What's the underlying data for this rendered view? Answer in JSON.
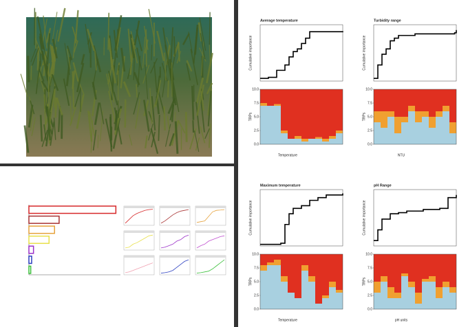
{
  "left_chart": {
    "values": [
      0.95,
      0.33,
      0.28,
      0.22,
      0.05,
      0.03,
      0.02
    ],
    "colors": [
      "#d62728",
      "#a83232",
      "#e6a23c",
      "#e8e04a",
      "#9b30c8",
      "#2b3fc0",
      "#3cc03c"
    ],
    "xlim": [
      0,
      1
    ]
  },
  "mini_plots": {
    "x": [
      0,
      1,
      2,
      3,
      4,
      5,
      6,
      7
    ],
    "ylim": [
      0,
      1
    ],
    "plots": [
      {
        "color": "#d62728",
        "y": [
          0.05,
          0.3,
          0.55,
          0.7,
          0.8,
          0.9,
          0.95,
          0.97
        ]
      },
      {
        "color": "#a83232",
        "y": [
          0.05,
          0.2,
          0.4,
          0.6,
          0.75,
          0.85,
          0.9,
          0.95
        ]
      },
      {
        "color": "#e6a23c",
        "y": [
          0.1,
          0.15,
          0.2,
          0.5,
          0.8,
          0.9,
          0.92,
          0.95
        ]
      },
      {
        "color": "#e8e04a",
        "y": [
          0.05,
          0.1,
          0.3,
          0.4,
          0.55,
          0.7,
          0.85,
          0.9
        ]
      },
      {
        "color": "#9b30c8",
        "y": [
          0.05,
          0.1,
          0.2,
          0.3,
          0.5,
          0.6,
          0.8,
          0.9
        ]
      },
      {
        "color": "#c050d0",
        "y": [
          0.05,
          0.2,
          0.3,
          0.5,
          0.6,
          0.7,
          0.8,
          0.85
        ]
      },
      {
        "color": "#f0a0b0",
        "y": [
          0.05,
          0.1,
          0.2,
          0.3,
          0.4,
          0.5,
          0.6,
          0.7
        ]
      },
      {
        "color": "#2b3fc0",
        "y": [
          0.02,
          0.05,
          0.1,
          0.2,
          0.4,
          0.6,
          0.8,
          0.9
        ]
      },
      {
        "color": "#3cc03c",
        "y": [
          0.02,
          0.05,
          0.1,
          0.15,
          0.3,
          0.5,
          0.7,
          0.9
        ]
      }
    ]
  },
  "bar_yticks": [
    {
      "value": 0,
      "label": "0.0"
    },
    {
      "value": 2.5,
      "label": "2.5"
    },
    {
      "value": 5,
      "label": "5.0"
    },
    {
      "value": 7.5,
      "label": "7.5"
    },
    {
      "value": 10,
      "label": "10.0"
    }
  ],
  "bar_ylim": [
    0,
    10
  ],
  "stack_colors": [
    "#a8d0e0",
    "#f0a030",
    "#e03020"
  ],
  "step_xlim": [
    0,
    10
  ],
  "step_ylim": [
    0,
    1.05
  ],
  "panels": [
    {
      "title": "Average temperature",
      "ylabel": "Cumulative importance",
      "xlabel": "Temperature",
      "bar_ylabel": "TRPs",
      "step_x": [
        0,
        1,
        2,
        3,
        3.5,
        4,
        4.5,
        5,
        5.5,
        6,
        10
      ],
      "step_y": [
        0.05,
        0.07,
        0.2,
        0.3,
        0.45,
        0.55,
        0.6,
        0.7,
        0.8,
        0.92,
        0.93
      ],
      "stacks": [
        [
          7,
          7,
          7,
          2,
          1,
          1,
          0.5,
          1,
          1,
          0.5,
          1,
          2
        ],
        [
          0.5,
          0,
          0.3,
          0.5,
          0,
          0.5,
          0.5,
          0,
          0.3,
          0.5,
          0.5,
          0.5
        ],
        [
          2.5,
          3,
          2.7,
          7.5,
          9,
          8.5,
          9,
          9,
          8.7,
          9,
          8.5,
          7.5
        ]
      ]
    },
    {
      "title": "Turbidity range",
      "ylabel": "Cumulative importance",
      "xlabel": "NTU",
      "bar_ylabel": "TRPs",
      "step_x": [
        0,
        0.5,
        1,
        1.5,
        2,
        2.5,
        3,
        5,
        9.8,
        10
      ],
      "step_y": [
        0.05,
        0.3,
        0.5,
        0.6,
        0.75,
        0.8,
        0.85,
        0.88,
        0.9,
        0.95
      ],
      "stacks": [
        [
          4,
          3,
          5,
          2,
          4,
          6,
          4,
          5,
          3,
          5,
          6,
          2
        ],
        [
          2,
          3,
          1,
          3,
          1,
          1,
          2,
          1,
          2,
          1,
          1,
          2
        ],
        [
          4,
          4,
          4,
          5,
          5,
          3,
          4,
          4,
          5,
          4,
          3,
          6
        ]
      ]
    },
    {
      "title": "Maximum temperature",
      "ylabel": "Cumulative importance",
      "xlabel": "Temperature",
      "bar_ylabel": "TRPs",
      "step_x": [
        0,
        2.5,
        3,
        3.5,
        4,
        5,
        6,
        7,
        8,
        10
      ],
      "step_y": [
        0.03,
        0.05,
        0.4,
        0.6,
        0.7,
        0.75,
        0.85,
        0.9,
        0.95,
        0.98
      ],
      "stacks": [
        [
          7,
          8,
          8,
          5,
          3,
          2,
          7,
          5,
          1,
          2,
          4,
          3
        ],
        [
          1,
          0.5,
          1,
          1,
          0,
          0,
          1,
          1,
          0,
          0.5,
          1,
          0.5
        ],
        [
          2,
          1.5,
          1,
          4,
          7,
          8,
          2,
          4,
          9,
          7.5,
          5,
          6.5
        ]
      ]
    },
    {
      "title": "pH Range",
      "ylabel": "Cumulative importance",
      "xlabel": "pH units",
      "bar_ylabel": "TRPs",
      "step_x": [
        0,
        0.5,
        1,
        2,
        3,
        4,
        6,
        8,
        9,
        10
      ],
      "step_y": [
        0.1,
        0.3,
        0.5,
        0.6,
        0.62,
        0.65,
        0.68,
        0.7,
        0.9,
        0.95
      ],
      "stacks": [
        [
          3,
          5,
          2,
          2,
          6,
          4,
          1,
          5,
          5,
          2,
          4,
          3
        ],
        [
          2,
          1,
          2,
          1,
          0.5,
          1,
          2,
          0.5,
          1,
          2,
          1,
          1
        ],
        [
          5,
          4,
          6,
          7,
          3.5,
          5,
          7,
          4.5,
          4,
          6,
          5,
          6
        ]
      ]
    }
  ]
}
